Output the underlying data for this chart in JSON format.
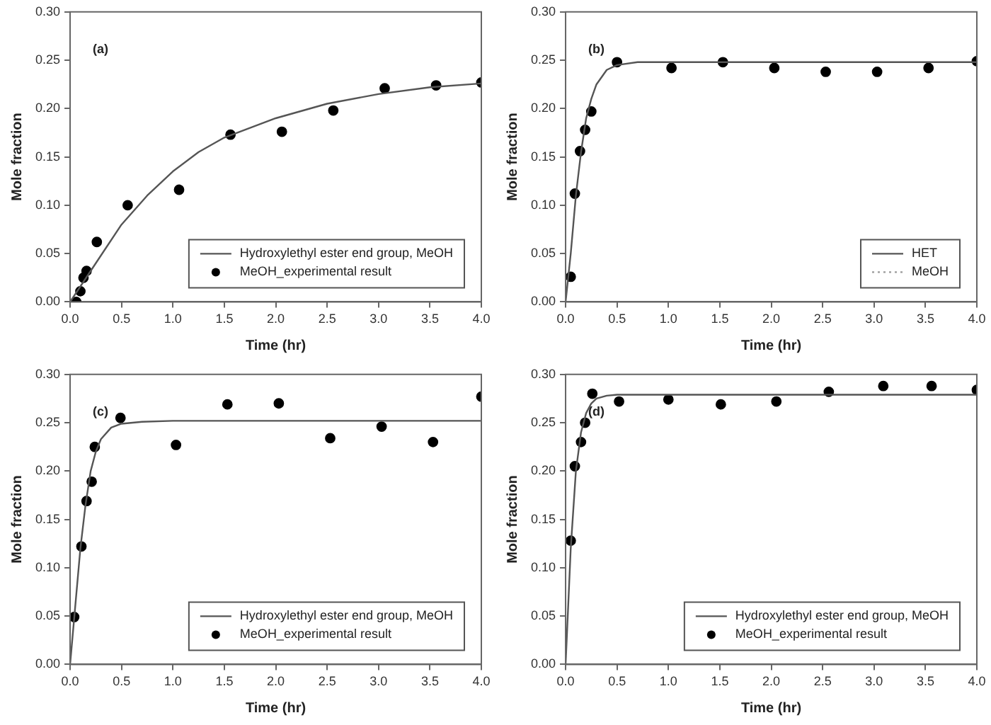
{
  "chart_data": [
    {
      "type": "line",
      "annotations": [
        "(a)"
      ],
      "xlabel": "Time (hr)",
      "ylabel": "Mole fraction",
      "xlim": [
        0,
        4
      ],
      "ylim": [
        0,
        0.3
      ],
      "grid": false,
      "legend": "bottom right",
      "xticks": [
        {
          "value": 0,
          "label": "0.0"
        },
        {
          "value": 0.5,
          "label": "0.5"
        },
        {
          "value": 1,
          "label": "1.0"
        },
        {
          "value": 1.5,
          "label": "1.5"
        },
        {
          "value": 2,
          "label": "2.0"
        },
        {
          "value": 2.5,
          "label": "2.5"
        },
        {
          "value": 3,
          "label": "3.0"
        },
        {
          "value": 3.5,
          "label": "3.5"
        },
        {
          "value": 4,
          "label": "4.0"
        }
      ],
      "yticks": [
        {
          "value": 0,
          "label": "0.00"
        },
        {
          "value": 0.05,
          "label": "0.05"
        },
        {
          "value": 0.1,
          "label": "0.10"
        },
        {
          "value": 0.15,
          "label": "0.15"
        },
        {
          "value": 0.2,
          "label": "0.20"
        },
        {
          "value": 0.25,
          "label": "0.25"
        },
        {
          "value": 0.3,
          "label": "0.30"
        }
      ],
      "series": [
        {
          "type": "line",
          "name": "Hydroxylethyl ester end group, MeOH",
          "color": "#555555",
          "marker": "none",
          "line_style": "solid",
          "x": [
            0,
            0.25,
            0.5,
            0.75,
            1,
            1.25,
            1.5,
            2,
            2.5,
            3,
            3.5,
            4
          ],
          "values": [
            0,
            0.04,
            0.08,
            0.11,
            0.135,
            0.155,
            0.17,
            0.19,
            0.205,
            0.215,
            0.222,
            0.226
          ]
        },
        {
          "type": "scatter",
          "name": "MeOH_experimental result",
          "color": "#000000",
          "marker": "circle",
          "x": [
            0.06,
            0.1,
            0.13,
            0.16,
            0.26,
            0.56,
            1.06,
            1.56,
            2.06,
            2.56,
            3.06,
            3.56,
            4
          ],
          "values": [
            0,
            0.011,
            0.025,
            0.032,
            0.062,
            0.1,
            0.116,
            0.173,
            0.176,
            0.198,
            0.221,
            0.224,
            0.227
          ]
        }
      ]
    },
    {
      "type": "line",
      "annotations": [
        "(b)"
      ],
      "xlabel": "Time (hr)",
      "ylabel": "Mole fraction",
      "xlim": [
        0,
        4
      ],
      "ylim": [
        0,
        0.3
      ],
      "grid": false,
      "legend": "bottom right",
      "xticks": [
        {
          "value": 0,
          "label": "0.0"
        },
        {
          "value": 0.5,
          "label": "0.5"
        },
        {
          "value": 1,
          "label": "1.0"
        },
        {
          "value": 1.5,
          "label": "1.5"
        },
        {
          "value": 2,
          "label": "2.0"
        },
        {
          "value": 2.5,
          "label": "2.5"
        },
        {
          "value": 3,
          "label": "3.0"
        },
        {
          "value": 3.5,
          "label": "3.5"
        },
        {
          "value": 4,
          "label": "4.0"
        }
      ],
      "yticks": [
        {
          "value": 0,
          "label": "0.00"
        },
        {
          "value": 0.05,
          "label": "0.05"
        },
        {
          "value": 0.1,
          "label": "0.10"
        },
        {
          "value": 0.15,
          "label": "0.15"
        },
        {
          "value": 0.2,
          "label": "0.20"
        },
        {
          "value": 0.25,
          "label": "0.25"
        },
        {
          "value": 0.3,
          "label": "0.30"
        }
      ],
      "series": [
        {
          "type": "line",
          "name": "HET",
          "color": "#555555",
          "marker": "none",
          "line_style": "solid",
          "x": [
            0,
            0.05,
            0.1,
            0.15,
            0.2,
            0.25,
            0.3,
            0.4,
            0.5,
            0.7,
            1,
            4
          ],
          "values": [
            0,
            0.05,
            0.11,
            0.155,
            0.19,
            0.21,
            0.225,
            0.24,
            0.245,
            0.248,
            0.248,
            0.248
          ]
        },
        {
          "type": "line",
          "name": "MeOH",
          "color": "#999999",
          "marker": "none",
          "line_style": "dotted"
        },
        {
          "type": "scatter",
          "color": "#000000",
          "marker": "circle",
          "x": [
            0.05,
            0.09,
            0.14,
            0.19,
            0.25,
            0.5,
            1.03,
            1.53,
            2.03,
            2.53,
            3.03,
            3.53,
            4
          ],
          "values": [
            0.026,
            0.112,
            0.156,
            0.178,
            0.197,
            0.248,
            0.242,
            0.248,
            0.242,
            0.238,
            0.238,
            0.242,
            0.249
          ]
        }
      ]
    },
    {
      "type": "line",
      "annotations": [
        "(c)"
      ],
      "xlabel": "Time (hr)",
      "ylabel": "Mole fraction",
      "xlim": [
        0,
        4
      ],
      "ylim": [
        0,
        0.3
      ],
      "grid": false,
      "legend": "bottom right",
      "xticks": [
        {
          "value": 0,
          "label": "0.0"
        },
        {
          "value": 0.5,
          "label": "0.5"
        },
        {
          "value": 1,
          "label": "1.0"
        },
        {
          "value": 1.5,
          "label": "1.5"
        },
        {
          "value": 2,
          "label": "2.0"
        },
        {
          "value": 2.5,
          "label": "2.5"
        },
        {
          "value": 3,
          "label": "3.0"
        },
        {
          "value": 3.5,
          "label": "3.5"
        },
        {
          "value": 4,
          "label": "4.0"
        }
      ],
      "yticks": [
        {
          "value": 0,
          "label": "0.00"
        },
        {
          "value": 0.05,
          "label": "0.05"
        },
        {
          "value": 0.1,
          "label": "0.10"
        },
        {
          "value": 0.15,
          "label": "0.15"
        },
        {
          "value": 0.2,
          "label": "0.20"
        },
        {
          "value": 0.25,
          "label": "0.25"
        },
        {
          "value": 0.3,
          "label": "0.30"
        }
      ],
      "series": [
        {
          "type": "line",
          "name": "Hydroxylethyl ester end group, MeOH",
          "color": "#555555",
          "marker": "none",
          "line_style": "solid",
          "x": [
            0,
            0.05,
            0.1,
            0.15,
            0.2,
            0.25,
            0.3,
            0.4,
            0.5,
            0.7,
            1,
            4
          ],
          "values": [
            0,
            0.06,
            0.12,
            0.165,
            0.2,
            0.22,
            0.233,
            0.245,
            0.249,
            0.251,
            0.252,
            0.252
          ]
        },
        {
          "type": "scatter",
          "name": "MeOH_experimental result",
          "color": "#000000",
          "marker": "circle",
          "x": [
            0.04,
            0.11,
            0.16,
            0.21,
            0.24,
            0.49,
            1.03,
            1.53,
            2.03,
            2.53,
            3.03,
            3.53,
            4
          ],
          "values": [
            0.049,
            0.122,
            0.169,
            0.189,
            0.225,
            0.255,
            0.227,
            0.269,
            0.27,
            0.234,
            0.246,
            0.23,
            0.277
          ]
        }
      ]
    },
    {
      "type": "line",
      "annotations": [
        "(d)"
      ],
      "xlabel": "Time (hr)",
      "ylabel": "Mole fraction",
      "xlim": [
        0,
        4
      ],
      "ylim": [
        0,
        0.3
      ],
      "grid": false,
      "legend": "bottom right",
      "xticks": [
        {
          "value": 0,
          "label": "0.0"
        },
        {
          "value": 0.5,
          "label": "0.5"
        },
        {
          "value": 1,
          "label": "1.0"
        },
        {
          "value": 1.5,
          "label": "1.5"
        },
        {
          "value": 2,
          "label": "2.0"
        },
        {
          "value": 2.5,
          "label": "2.5"
        },
        {
          "value": 3,
          "label": "3.0"
        },
        {
          "value": 3.5,
          "label": "3.5"
        },
        {
          "value": 4,
          "label": "4.0"
        }
      ],
      "yticks": [
        {
          "value": 0,
          "label": "0.00"
        },
        {
          "value": 0.05,
          "label": "0.05"
        },
        {
          "value": 0.1,
          "label": "0.10"
        },
        {
          "value": 0.15,
          "label": "0.15"
        },
        {
          "value": 0.2,
          "label": "0.20"
        },
        {
          "value": 0.25,
          "label": "0.25"
        },
        {
          "value": 0.3,
          "label": "0.30"
        }
      ],
      "series": [
        {
          "type": "line",
          "name": "Hydroxylethyl ester end group, MeOH",
          "color": "#555555",
          "marker": "none",
          "line_style": "solid",
          "x": [
            0,
            0.05,
            0.1,
            0.15,
            0.2,
            0.25,
            0.3,
            0.4,
            0.5,
            1,
            4
          ],
          "values": [
            0,
            0.12,
            0.2,
            0.24,
            0.26,
            0.27,
            0.275,
            0.278,
            0.279,
            0.279,
            0.279
          ]
        },
        {
          "type": "scatter",
          "name": "MeOH_experimental result",
          "color": "#000000",
          "marker": "circle",
          "x": [
            0.05,
            0.09,
            0.15,
            0.19,
            0.26,
            0.52,
            1,
            1.51,
            2.05,
            2.56,
            3.09,
            3.56,
            4
          ],
          "values": [
            0.128,
            0.205,
            0.23,
            0.25,
            0.28,
            0.272,
            0.274,
            0.269,
            0.272,
            0.282,
            0.288,
            0.288,
            0.284
          ]
        }
      ]
    }
  ]
}
